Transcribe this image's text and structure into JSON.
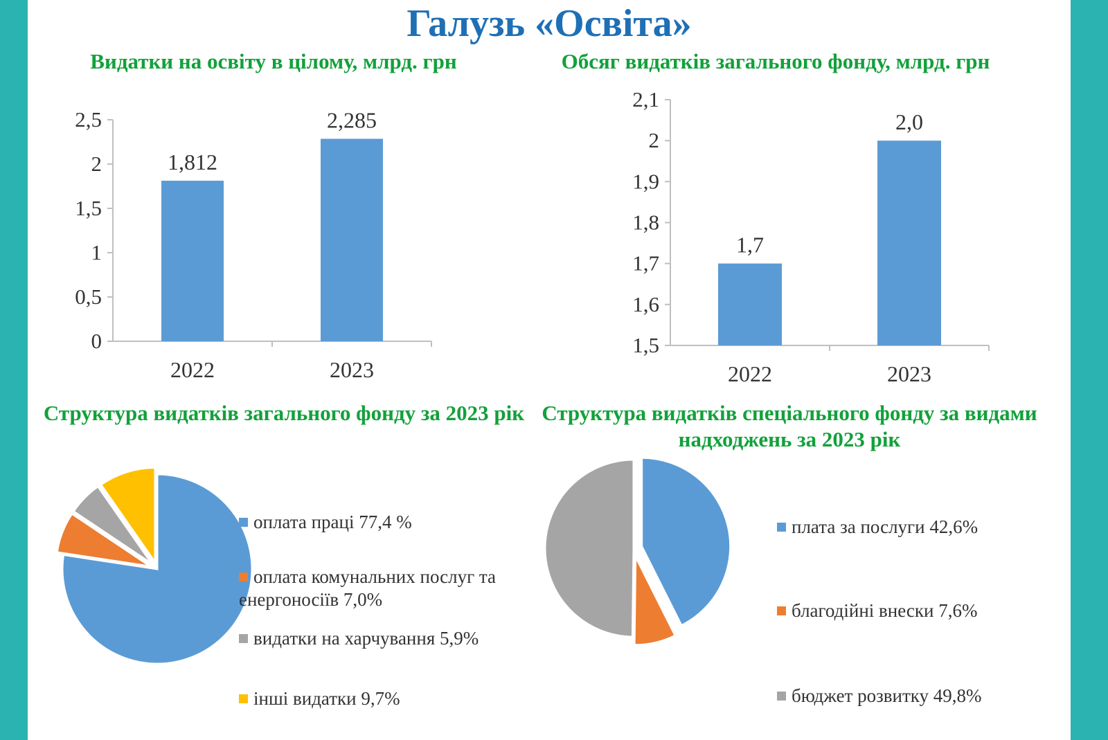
{
  "page": {
    "title": "Галузь «Освіта»"
  },
  "colors": {
    "blue": "#5b9bd5",
    "orange": "#ed7d31",
    "gray": "#a5a5a5",
    "yellow": "#ffc000",
    "title_blue": "#1f6fb5",
    "green": "#12a13a"
  },
  "chart_data": [
    {
      "type": "bar",
      "title": "Видатки на освіту в цілому, млрд. грн",
      "categories": [
        "2022",
        "2023"
      ],
      "values": [
        1.812,
        2.285
      ],
      "value_labels": [
        "1,812",
        "2,285"
      ],
      "ylim": [
        0,
        2.5
      ],
      "yticks": [
        0,
        0.5,
        1,
        1.5,
        2,
        2.5
      ],
      "ytick_labels": [
        "0",
        "0,5",
        "1",
        "1,5",
        "2",
        "2,5"
      ],
      "xlabel": "",
      "ylabel": "",
      "grid": false
    },
    {
      "type": "bar",
      "title": "Обсяг видатків загального фонду, млрд. грн",
      "categories": [
        "2022",
        "2023"
      ],
      "values": [
        1.7,
        2.0
      ],
      "value_labels": [
        "1,7",
        "2,0"
      ],
      "ylim": [
        1.5,
        2.1
      ],
      "yticks": [
        1.5,
        1.6,
        1.7,
        1.8,
        1.9,
        2.0,
        2.1
      ],
      "ytick_labels": [
        "1,5",
        "1,6",
        "1,7",
        "1,8",
        "1,9",
        "2",
        "2,1"
      ],
      "xlabel": "",
      "ylabel": "",
      "grid": false
    },
    {
      "type": "pie",
      "title": "Структура видатків загального фонду за 2023 рік",
      "slices": [
        {
          "label": "оплата праці 77,4 %",
          "value": 77.4,
          "color": "#5b9bd5"
        },
        {
          "label": "оплата комунальних послуг та енергоносіїв 7,0%",
          "value": 7.0,
          "color": "#ed7d31"
        },
        {
          "label": "видатки на харчування 5,9%",
          "value": 5.9,
          "color": "#a5a5a5"
        },
        {
          "label": "інші видатки 9,7%",
          "value": 9.7,
          "color": "#ffc000"
        }
      ],
      "legend_position": "right"
    },
    {
      "type": "pie",
      "title": "Структура видатків спеціального фонду за видами надходжень за 2023 рік",
      "slices": [
        {
          "label": "плата за послуги 42,6%",
          "value": 42.6,
          "color": "#5b9bd5"
        },
        {
          "label": "благодійні внески 7,6%",
          "value": 7.6,
          "color": "#ed7d31"
        },
        {
          "label": "бюджет розвитку 49,8%",
          "value": 49.8,
          "color": "#a5a5a5"
        }
      ],
      "legend_position": "right"
    }
  ]
}
